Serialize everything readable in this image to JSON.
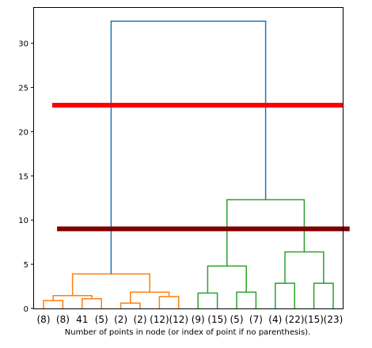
{
  "chart_data": {
    "type": "dendrogram",
    "title": "",
    "xlabel": "Number of points in node (or index of point if no parenthesis).",
    "ylabel": "",
    "ylim": [
      0,
      34
    ],
    "y_ticks": [
      0,
      5,
      10,
      15,
      20,
      25,
      30
    ],
    "grid": false,
    "leaf_labels": [
      "(8)",
      "(8)",
      "41",
      "(5)",
      "(2)",
      "(2)",
      "(12)",
      "(12)",
      "(9)",
      "(15)",
      "(5)",
      "(7)",
      "(4)",
      "(22)",
      "(15)",
      "(23)"
    ],
    "links": [
      {
        "children": [
          0,
          1
        ],
        "height": 0.9,
        "color": "#ff7f0e"
      },
      {
        "children": [
          2,
          3
        ],
        "height": 1.1,
        "color": "#ff7f0e"
      },
      {
        "children": [
          16,
          17
        ],
        "height": 1.45,
        "color": "#ff7f0e"
      },
      {
        "children": [
          4,
          5
        ],
        "height": 0.6,
        "color": "#ff7f0e"
      },
      {
        "children": [
          6,
          7
        ],
        "height": 1.35,
        "color": "#ff7f0e"
      },
      {
        "children": [
          19,
          20
        ],
        "height": 1.85,
        "color": "#ff7f0e"
      },
      {
        "children": [
          18,
          21
        ],
        "height": 3.9,
        "color": "#ff7f0e"
      },
      {
        "children": [
          8,
          9
        ],
        "height": 1.75,
        "color": "#2ca02c"
      },
      {
        "children": [
          10,
          11
        ],
        "height": 1.85,
        "color": "#2ca02c"
      },
      {
        "children": [
          23,
          24
        ],
        "height": 4.8,
        "color": "#2ca02c"
      },
      {
        "children": [
          12,
          13
        ],
        "height": 2.85,
        "color": "#2ca02c"
      },
      {
        "children": [
          14,
          15
        ],
        "height": 2.85,
        "color": "#2ca02c"
      },
      {
        "children": [
          26,
          27
        ],
        "height": 6.4,
        "color": "#2ca02c"
      },
      {
        "children": [
          25,
          28
        ],
        "height": 12.3,
        "color": "#2ca02c"
      },
      {
        "children": [
          22,
          29
        ],
        "height": 32.5,
        "color": "#1f77b4"
      }
    ],
    "threshold_lines": [
      {
        "y": 23.0,
        "x_start": 0.45,
        "x_end": 15.5,
        "color": "#ff0000"
      },
      {
        "y": 9.0,
        "x_start": 0.7,
        "x_end": 15.85,
        "color": "#800000"
      }
    ]
  }
}
